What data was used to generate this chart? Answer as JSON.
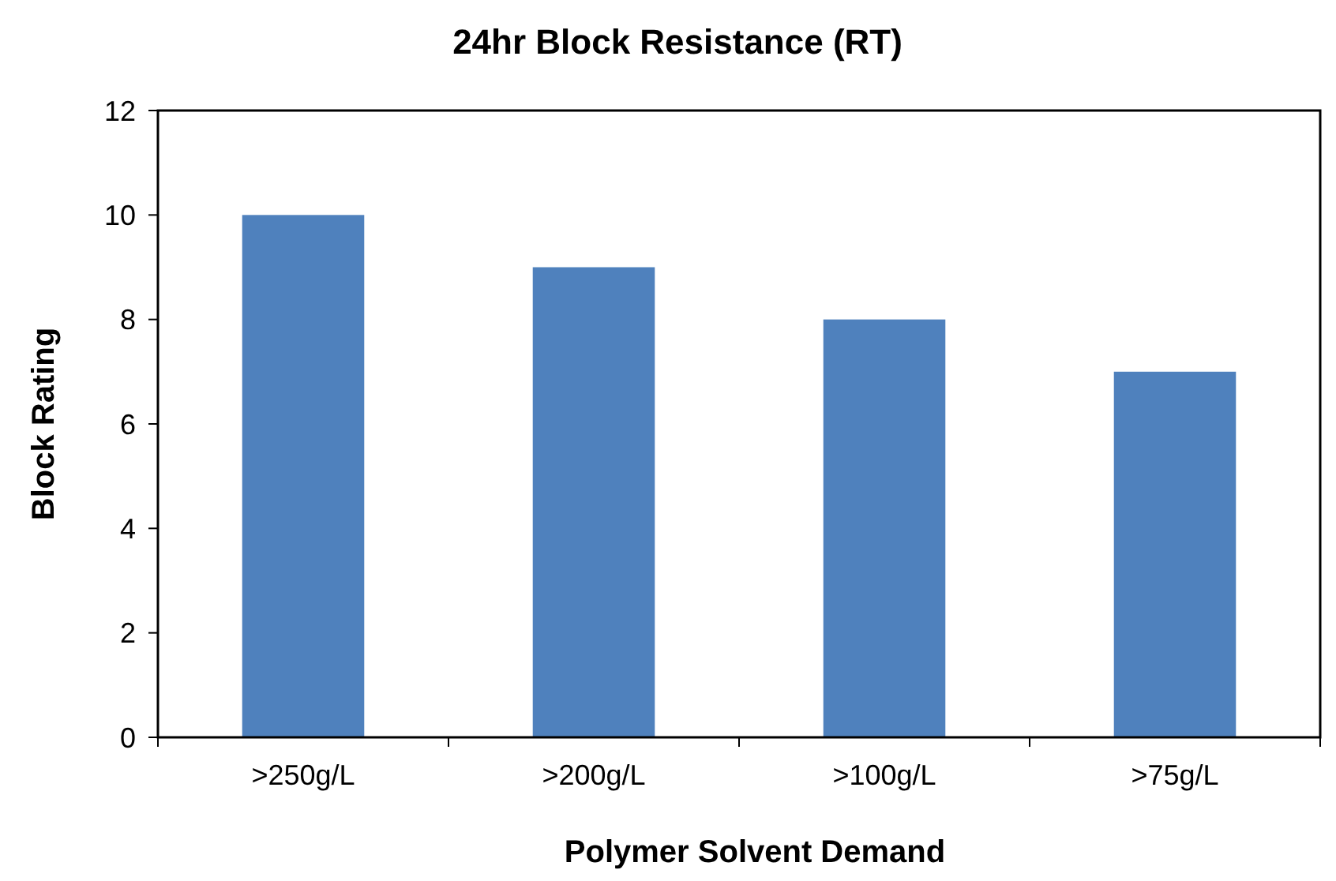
{
  "chart_data": {
    "type": "bar",
    "title": "24hr Block Resistance (RT)",
    "xlabel": "Polymer Solvent Demand",
    "ylabel": "Block Rating",
    "categories": [
      ">250g/L",
      ">200g/L",
      ">100g/L",
      ">75g/L"
    ],
    "values": [
      10,
      9,
      8,
      7
    ],
    "color": "#4f81bd",
    "ylim": [
      0,
      12
    ],
    "yticks": [
      0,
      2,
      4,
      6,
      8,
      10,
      12
    ],
    "grid": false
  }
}
